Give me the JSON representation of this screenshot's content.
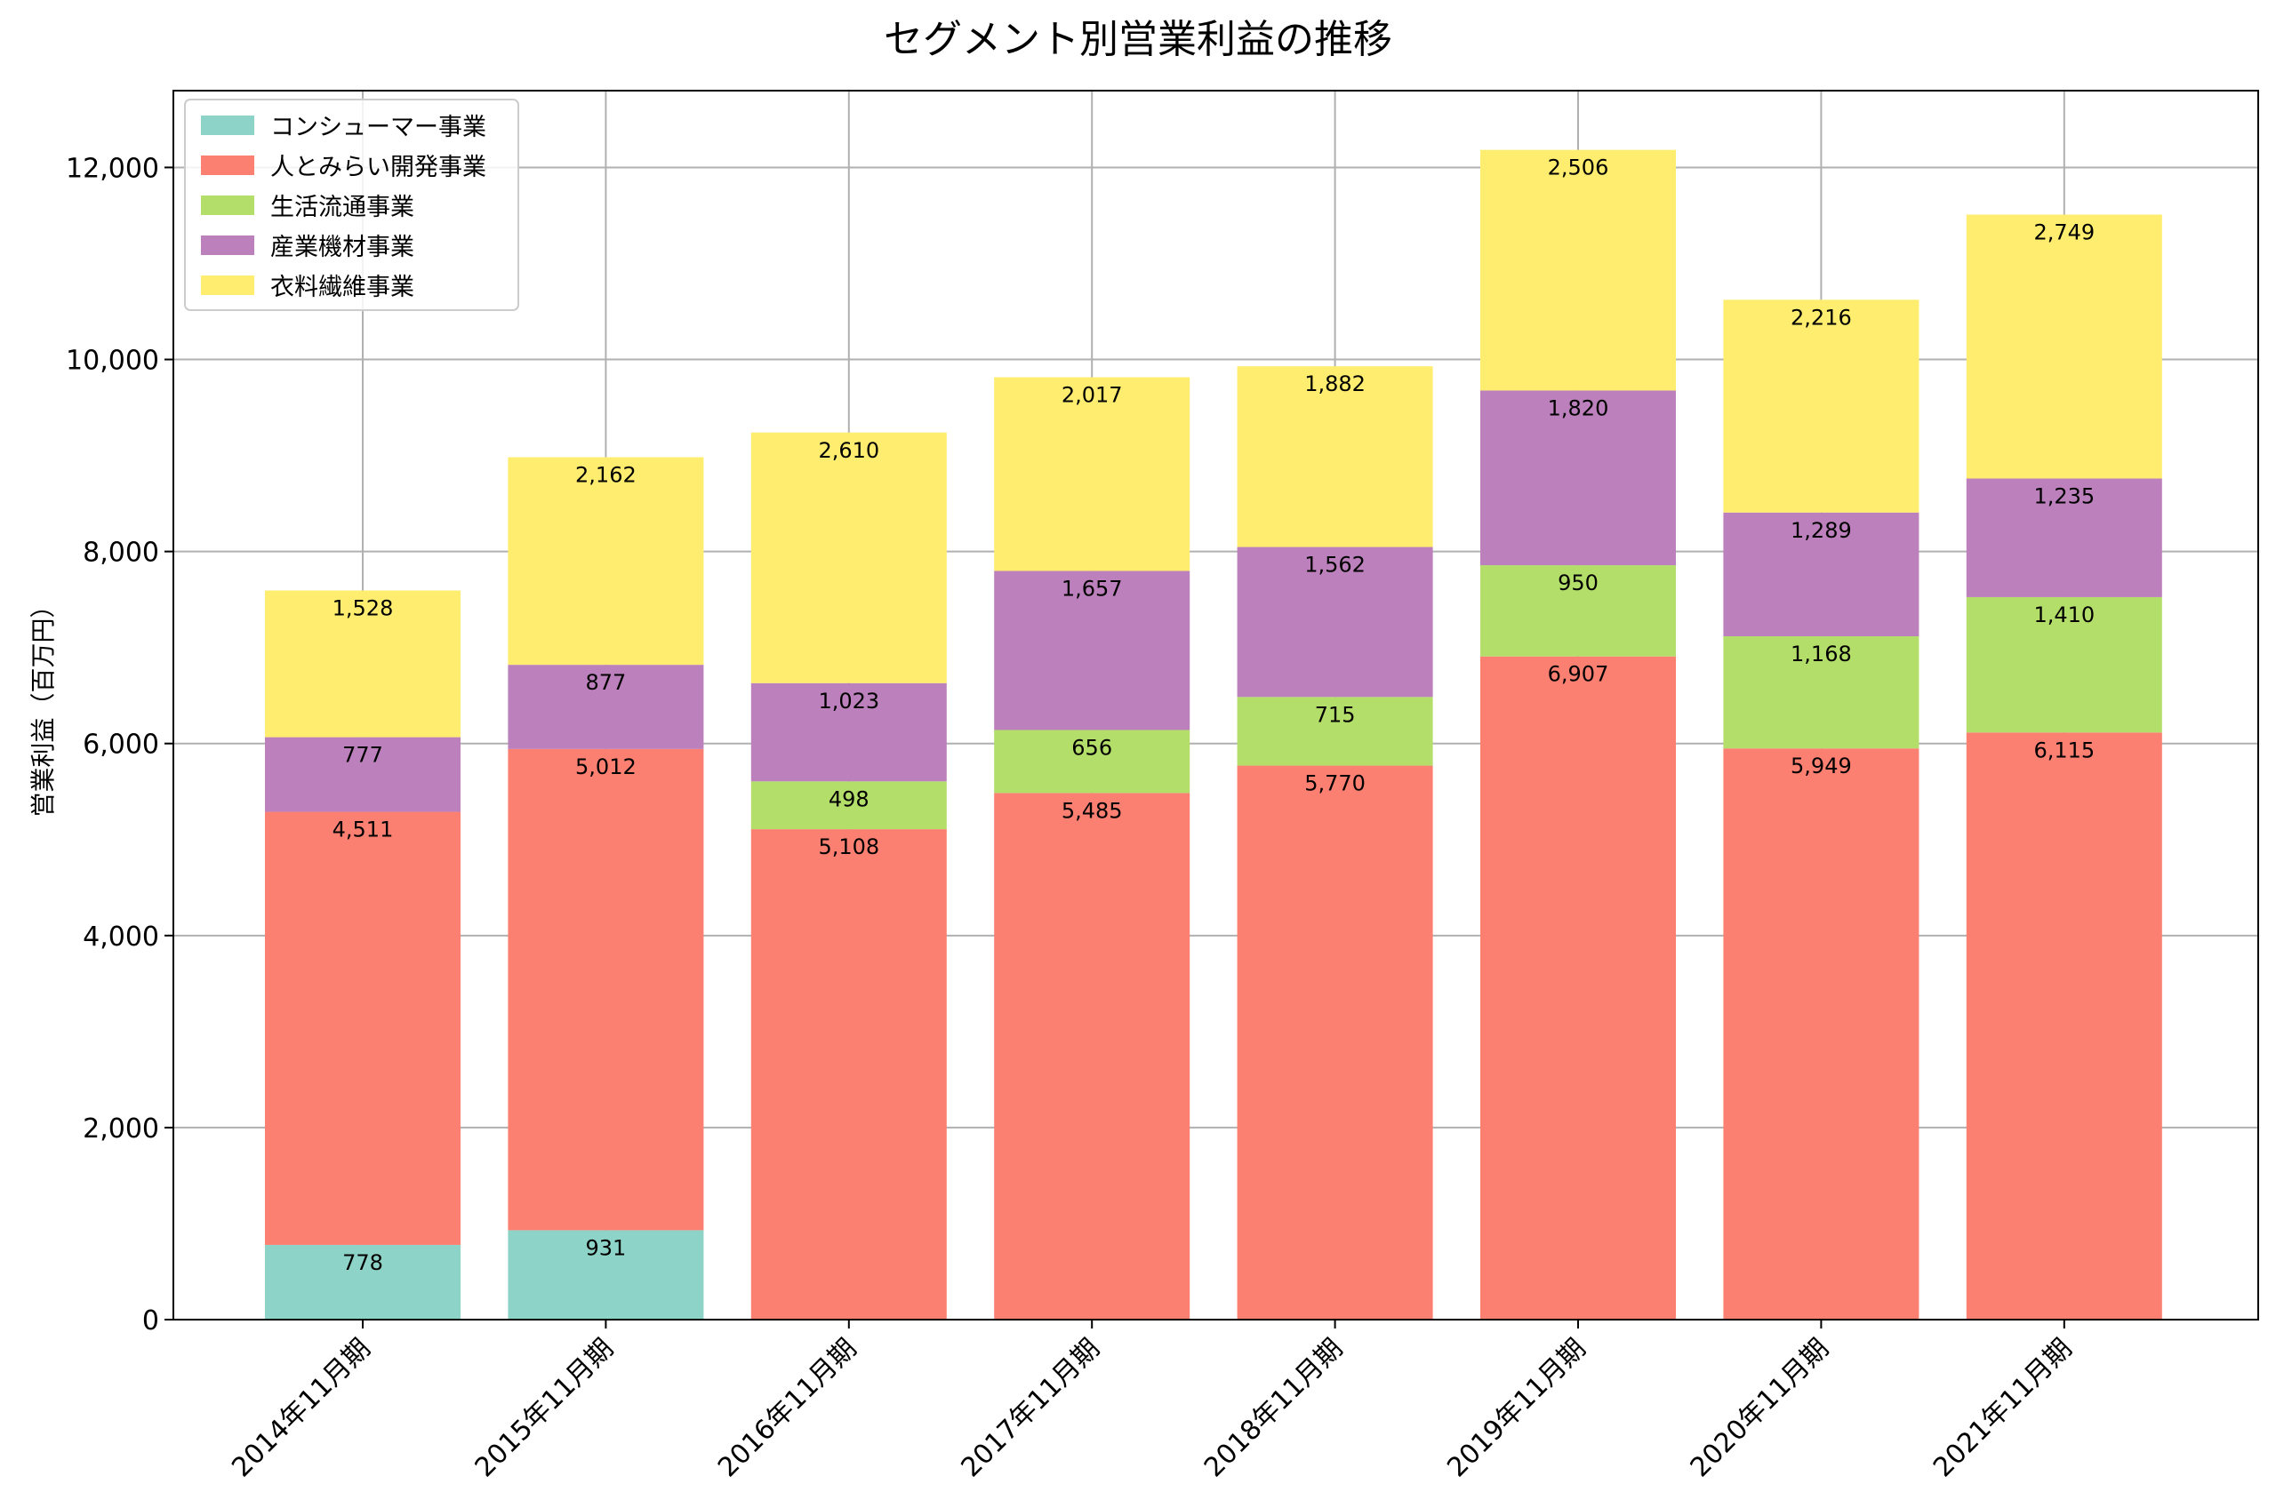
{
  "chart_data": {
    "type": "bar",
    "stacked": true,
    "title": "セグメント別営業利益の推移",
    "xlabel": "",
    "ylabel": "営業利益（百万円）",
    "ylim": [
      0,
      12800
    ],
    "yticks": [
      0,
      2000,
      4000,
      6000,
      8000,
      10000,
      12000
    ],
    "ytick_labels": [
      "0",
      "2,000",
      "4,000",
      "6,000",
      "8,000",
      "10,000",
      "12,000"
    ],
    "grid": true,
    "legend_position": "top-left",
    "categories": [
      "2014年11月期",
      "2015年11月期",
      "2016年11月期",
      "2017年11月期",
      "2018年11月期",
      "2019年11月期",
      "2020年11月期",
      "2021年11月期"
    ],
    "series": [
      {
        "name": "コンシューマー事業",
        "color": "#8dd3c7",
        "values": [
          778,
          931,
          null,
          null,
          null,
          null,
          null,
          null
        ]
      },
      {
        "name": "人とみらい開発事業",
        "color": "#fb8072",
        "values": [
          4511,
          5012,
          5108,
          5485,
          5770,
          6907,
          5949,
          6115
        ]
      },
      {
        "name": "生活流通事業",
        "color": "#b3de69",
        "values": [
          null,
          null,
          498,
          656,
          715,
          950,
          1168,
          1410
        ]
      },
      {
        "name": "産業機材事業",
        "color": "#bc80bd",
        "values": [
          777,
          877,
          1023,
          1657,
          1562,
          1820,
          1289,
          1235
        ]
      },
      {
        "name": "衣料繊維事業",
        "color": "#ffed6f",
        "values": [
          1528,
          2162,
          2610,
          2017,
          1882,
          2506,
          2216,
          2749
        ]
      }
    ]
  }
}
